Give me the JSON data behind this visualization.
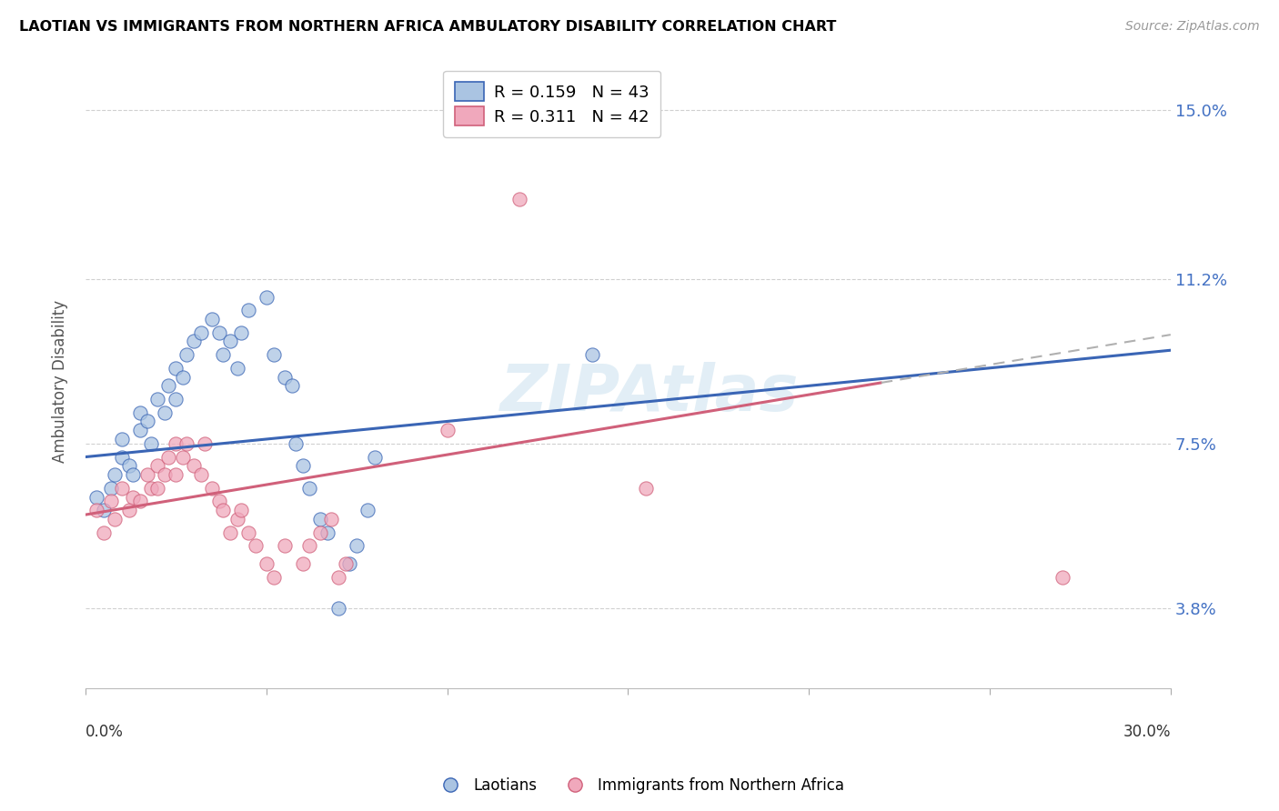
{
  "title": "LAOTIAN VS IMMIGRANTS FROM NORTHERN AFRICA AMBULATORY DISABILITY CORRELATION CHART",
  "source": "Source: ZipAtlas.com",
  "ylabel": "Ambulatory Disability",
  "xmin": 0.0,
  "xmax": 0.3,
  "ymin": 0.02,
  "ymax": 0.158,
  "yticks": [
    0.038,
    0.075,
    0.112,
    0.15
  ],
  "ytick_labels": [
    "3.8%",
    "7.5%",
    "11.2%",
    "15.0%"
  ],
  "xtick_positions": [
    0.0,
    0.05,
    0.1,
    0.15,
    0.2,
    0.25,
    0.3
  ],
  "xtick_labels": [
    "0.0%",
    "",
    "",
    "",
    "",
    "",
    "30.0%"
  ],
  "legend_r1": "R = 0.159   N = 43",
  "legend_r2": "R = 0.311   N = 42",
  "watermark": "ZIPAtlas",
  "color_laotian": "#aac4e2",
  "color_africa": "#f0a8bc",
  "line_color_laotian": "#3a65b5",
  "line_color_africa": "#d0607a",
  "color_gray_dashed": "#b0b0b0",
  "laotian_intercept": 0.072,
  "laotian_slope": 0.08,
  "africa_intercept": 0.059,
  "africa_slope": 0.135,
  "laotian_points": [
    [
      0.003,
      0.063
    ],
    [
      0.005,
      0.06
    ],
    [
      0.007,
      0.065
    ],
    [
      0.008,
      0.068
    ],
    [
      0.01,
      0.072
    ],
    [
      0.01,
      0.076
    ],
    [
      0.012,
      0.07
    ],
    [
      0.013,
      0.068
    ],
    [
      0.015,
      0.078
    ],
    [
      0.015,
      0.082
    ],
    [
      0.017,
      0.08
    ],
    [
      0.018,
      0.075
    ],
    [
      0.02,
      0.085
    ],
    [
      0.022,
      0.082
    ],
    [
      0.023,
      0.088
    ],
    [
      0.025,
      0.092
    ],
    [
      0.025,
      0.085
    ],
    [
      0.027,
      0.09
    ],
    [
      0.028,
      0.095
    ],
    [
      0.03,
      0.098
    ],
    [
      0.032,
      0.1
    ],
    [
      0.035,
      0.103
    ],
    [
      0.037,
      0.1
    ],
    [
      0.038,
      0.095
    ],
    [
      0.04,
      0.098
    ],
    [
      0.042,
      0.092
    ],
    [
      0.043,
      0.1
    ],
    [
      0.045,
      0.105
    ],
    [
      0.05,
      0.108
    ],
    [
      0.052,
      0.095
    ],
    [
      0.055,
      0.09
    ],
    [
      0.057,
      0.088
    ],
    [
      0.058,
      0.075
    ],
    [
      0.06,
      0.07
    ],
    [
      0.062,
      0.065
    ],
    [
      0.065,
      0.058
    ],
    [
      0.067,
      0.055
    ],
    [
      0.07,
      0.038
    ],
    [
      0.073,
      0.048
    ],
    [
      0.075,
      0.052
    ],
    [
      0.078,
      0.06
    ],
    [
      0.08,
      0.072
    ],
    [
      0.14,
      0.095
    ]
  ],
  "africa_points": [
    [
      0.003,
      0.06
    ],
    [
      0.005,
      0.055
    ],
    [
      0.007,
      0.062
    ],
    [
      0.008,
      0.058
    ],
    [
      0.01,
      0.065
    ],
    [
      0.012,
      0.06
    ],
    [
      0.013,
      0.063
    ],
    [
      0.015,
      0.062
    ],
    [
      0.017,
      0.068
    ],
    [
      0.018,
      0.065
    ],
    [
      0.02,
      0.07
    ],
    [
      0.02,
      0.065
    ],
    [
      0.022,
      0.068
    ],
    [
      0.023,
      0.072
    ],
    [
      0.025,
      0.075
    ],
    [
      0.025,
      0.068
    ],
    [
      0.027,
      0.072
    ],
    [
      0.028,
      0.075
    ],
    [
      0.03,
      0.07
    ],
    [
      0.032,
      0.068
    ],
    [
      0.033,
      0.075
    ],
    [
      0.035,
      0.065
    ],
    [
      0.037,
      0.062
    ],
    [
      0.038,
      0.06
    ],
    [
      0.04,
      0.055
    ],
    [
      0.042,
      0.058
    ],
    [
      0.043,
      0.06
    ],
    [
      0.045,
      0.055
    ],
    [
      0.047,
      0.052
    ],
    [
      0.05,
      0.048
    ],
    [
      0.052,
      0.045
    ],
    [
      0.055,
      0.052
    ],
    [
      0.06,
      0.048
    ],
    [
      0.062,
      0.052
    ],
    [
      0.065,
      0.055
    ],
    [
      0.068,
      0.058
    ],
    [
      0.07,
      0.045
    ],
    [
      0.072,
      0.048
    ],
    [
      0.1,
      0.078
    ],
    [
      0.12,
      0.13
    ],
    [
      0.155,
      0.065
    ],
    [
      0.27,
      0.045
    ]
  ]
}
